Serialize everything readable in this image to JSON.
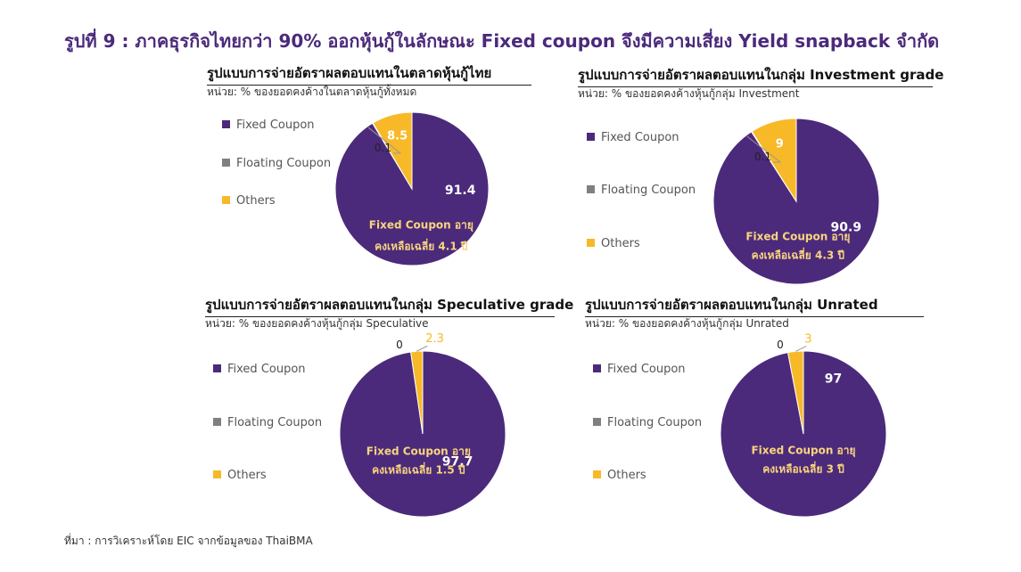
{
  "title": "รูปที่ 9 : ภาคธุรกิจไทยกว่า 90% ออกหุ้นกู้ในลักษณะ Fixed coupon จึงมีความเสี่ยง Yield snapback จำกัด",
  "source": "ที่มา : การวิเคราะห์โดย EIC จากข้อมูลของ ThaiBMA",
  "colors": {
    "fixed": "#4b2a7b",
    "floating": "#808080",
    "others": "#f7b928",
    "title": "#4b2a7b",
    "note": "#f9d47e"
  },
  "legend": [
    "Fixed Coupon",
    "Floating Coupon",
    "Others"
  ],
  "chart_data": [
    {
      "type": "pie",
      "title": "รูปแบบการจ่ายอัตราผลตอบแทนในตลาดหุ้นกู้ไทย",
      "unit": "หน่วย: % ของยอดคงค้างในตลาดหุ้นกู้ทั้งหมด",
      "slices": [
        {
          "name": "Fixed Coupon",
          "value": 91.4
        },
        {
          "name": "Floating Coupon",
          "value": 0.1
        },
        {
          "name": "Others",
          "value": 8.5
        }
      ],
      "note": [
        "Fixed Coupon อายุ",
        "คงเหลือเฉลี่ย  4.1 ปี"
      ]
    },
    {
      "type": "pie",
      "title": "รูปแบบการจ่ายอัตราผลตอบแทนในกลุ่ม Investment grade",
      "unit": "หน่วย: % ของยอดคงค้างหุ้นกู้กลุ่ม  Investment",
      "slices": [
        {
          "name": "Fixed Coupon",
          "value": 90.9
        },
        {
          "name": "Floating Coupon",
          "value": 0.1
        },
        {
          "name": "Others",
          "value": 9
        }
      ],
      "note": [
        "Fixed Coupon อายุ",
        "คงเหลือเฉลี่ย 4.3 ปี"
      ]
    },
    {
      "type": "pie",
      "title": "รูปแบบการจ่ายอัตราผลตอบแทนในกลุ่ม Speculative grade",
      "unit": "หน่วย: % ของยอดคงค้างหุ้นกู้กลุ่ม  Speculative",
      "slices": [
        {
          "name": "Fixed Coupon",
          "value": 97.7
        },
        {
          "name": "Floating Coupon",
          "value": 0
        },
        {
          "name": "Others",
          "value": 2.3
        }
      ],
      "note": [
        "Fixed Coupon อายุ",
        "คงเหลือเฉลี่ย 1.5 ปี"
      ]
    },
    {
      "type": "pie",
      "title": "รูปแบบการจ่ายอัตราผลตอบแทนในกลุ่ม Unrated",
      "unit": "หน่วย: % ของยอดคงค้างหุ้นกู้กลุ่ม  Unrated",
      "slices": [
        {
          "name": "Fixed Coupon",
          "value": 97
        },
        {
          "name": "Floating Coupon",
          "value": 0
        },
        {
          "name": "Others",
          "value": 3
        }
      ],
      "note": [
        "Fixed Coupon อายุ",
        "คงเหลือเฉลี่ย 3 ปี"
      ]
    }
  ]
}
